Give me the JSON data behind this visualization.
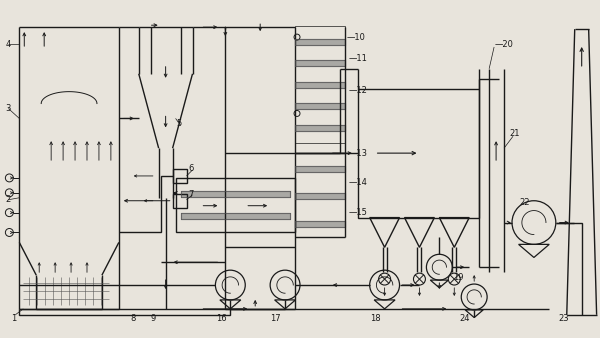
{
  "bg_color": "#e8e4dc",
  "line_color": "#1a1a1a",
  "lw": 1.0,
  "tlw": 0.7,
  "figsize": [
    6.0,
    3.38
  ],
  "dpi": 100
}
